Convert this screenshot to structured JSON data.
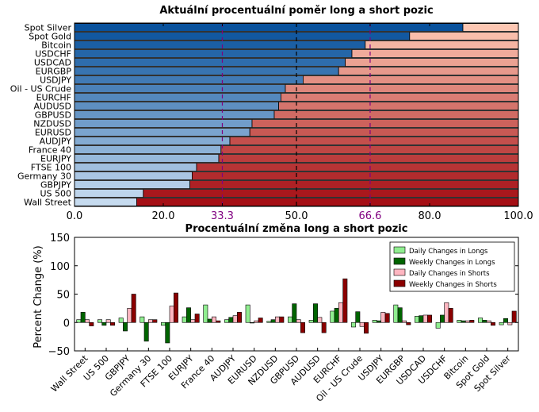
{
  "chart_data": [
    {
      "type": "bar",
      "orientation": "horizontal",
      "stacked": true,
      "title": "Aktuální procentuální poměr long a short pozic",
      "categories": [
        "Spot Silver",
        "Spot Gold",
        "Bitcoin",
        "USDCHF",
        "USDCAD",
        "EURGBP",
        "USDJPY",
        "Oil - US Crude",
        "EURCHF",
        "AUDUSD",
        "GBPUSD",
        "NZDUSD",
        "EURUSD",
        "AUDJPY",
        "France 40",
        "EURJPY",
        "FTSE 100",
        "Germany 30",
        "GBPJPY",
        "US 500",
        "Wall Street"
      ],
      "series": [
        {
          "values": [
            87.5,
            75.5,
            65.5,
            62.5,
            61.0,
            59.5,
            51.5,
            47.5,
            46.5,
            46.0,
            45.0,
            40.0,
            39.5,
            35.0,
            33.0,
            32.5,
            27.5,
            26.5,
            26.0,
            15.5,
            14.0
          ]
        },
        {
          "values": [
            12.5,
            24.5,
            34.5,
            37.5,
            39.0,
            40.5,
            48.5,
            52.5,
            53.5,
            54.0,
            55.0,
            60.0,
            60.5,
            65.0,
            67.0,
            67.5,
            72.5,
            73.5,
            74.0,
            84.5,
            86.0
          ]
        }
      ],
      "xlim": [
        0,
        100
      ],
      "xticks": [
        "0.0",
        "20.0",
        "33.3",
        "50.0",
        "66.6",
        "80.0",
        "100.0"
      ],
      "reference_lines": [
        33.3,
        50.0,
        66.6
      ],
      "colors": {
        "reference_33": "#800080",
        "reference_50": "#000000",
        "reference_66": "#800080"
      }
    },
    {
      "type": "bar",
      "title": "Procentuální změna long a short pozic",
      "ylabel": "Percent Change (%)",
      "ylim": [
        -50,
        150
      ],
      "yticks": [
        "−50",
        "0",
        "50",
        "100",
        "150"
      ],
      "categories": [
        "Wall Street",
        "US 500",
        "GBPJPY",
        "Germany 30",
        "FTSE 100",
        "EURJPY",
        "France 40",
        "AUDJPY",
        "EURUSD",
        "NZDUSD",
        "GBPUSD",
        "AUDUSD",
        "EURCHF",
        "Oil - US Crude",
        "USDJPY",
        "EURGBP",
        "USDCAD",
        "USDCHF",
        "Bitcoin",
        "Spot Gold",
        "Spot Silver"
      ],
      "series": [
        {
          "name": "Daily Changes in Longs",
          "color": "#90ee90",
          "values": [
            5,
            5,
            8,
            10,
            -5,
            10,
            31,
            5,
            31,
            2,
            10,
            4,
            20,
            -8,
            4,
            31,
            11,
            -10,
            4,
            8,
            -4
          ]
        },
        {
          "name": "Weekly Changes in Longs",
          "color": "#006400",
          "values": [
            18,
            -5,
            -15,
            -33,
            -36,
            26,
            6,
            9,
            -1,
            5,
            33,
            33,
            25,
            19,
            3,
            26,
            12,
            13,
            3,
            4,
            7
          ]
        },
        {
          "name": "Daily Changes in Shorts",
          "color": "#ffb6c1",
          "values": [
            5,
            5,
            25,
            5,
            29,
            5,
            10,
            12,
            3,
            10,
            5,
            9,
            35,
            -7,
            18,
            3,
            13,
            35,
            3,
            3,
            -4
          ]
        },
        {
          "name": "Weekly Changes in Shorts",
          "color": "#8b0000",
          "values": [
            -6,
            -5,
            50,
            5,
            52,
            15,
            3,
            18,
            8,
            10,
            -18,
            -18,
            77,
            -19,
            16,
            -4,
            13,
            25,
            4,
            -5,
            20
          ]
        }
      ],
      "legend": "top-right"
    }
  ]
}
